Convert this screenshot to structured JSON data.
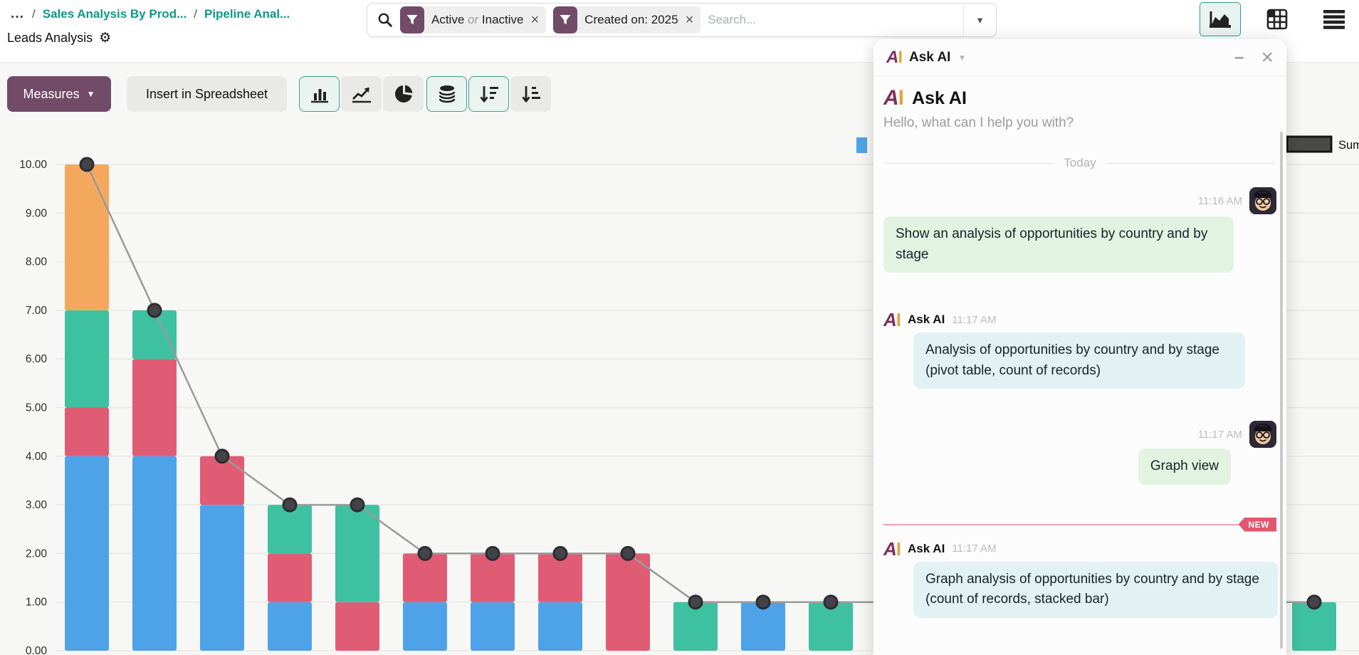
{
  "breadcrumb": {
    "menu_glyph": "…",
    "links": [
      "Sales Analysis By Prod...",
      "Pipeline Anal..."
    ],
    "separator": "/",
    "title": "Leads Analysis",
    "gear_glyph": "⚙"
  },
  "search": {
    "filters": [
      {
        "parts": [
          "Active",
          "or",
          "Inactive"
        ]
      },
      {
        "parts": [
          "Created on: 2025"
        ]
      }
    ],
    "placeholder": "Search..."
  },
  "toolbar": {
    "measures_label": "Measures",
    "insert_label": "Insert in Spreadsheet"
  },
  "chart_data": {
    "type": "bar",
    "subtype": "stacked-bars-with-sum-line",
    "title": "",
    "xlabel": "",
    "ylabel": "",
    "ylim": [
      0,
      10
    ],
    "grid": true,
    "y_ticks": [
      "10.00",
      "9.00",
      "8.00",
      "7.00",
      "6.00",
      "5.00",
      "4.00",
      "3.00",
      "2.00",
      "1.00",
      "0.00"
    ],
    "palette": {
      "blue": "#4ea3e8",
      "red": "#e05c75",
      "teal": "#3ec1a0",
      "orange": "#f4a85e",
      "sum_line": "#9a9a9a",
      "sum_dot": "#43434a"
    },
    "bars": [
      {
        "stack": [
          [
            "blue",
            4
          ],
          [
            "red",
            1
          ],
          [
            "teal",
            2
          ],
          [
            "orange",
            3
          ]
        ],
        "total": 10
      },
      {
        "stack": [
          [
            "blue",
            4
          ],
          [
            "red",
            2
          ],
          [
            "teal",
            1
          ]
        ],
        "total": 7
      },
      {
        "stack": [
          [
            "blue",
            3
          ],
          [
            "red",
            1
          ]
        ],
        "total": 4
      },
      {
        "stack": [
          [
            "blue",
            1
          ],
          [
            "red",
            1
          ],
          [
            "teal",
            1
          ]
        ],
        "total": 3
      },
      {
        "stack": [
          [
            "red",
            1
          ],
          [
            "teal",
            2
          ]
        ],
        "total": 3
      },
      {
        "stack": [
          [
            "blue",
            1
          ],
          [
            "red",
            1
          ]
        ],
        "total": 2
      },
      {
        "stack": [
          [
            "blue",
            1
          ],
          [
            "red",
            1
          ]
        ],
        "total": 2
      },
      {
        "stack": [
          [
            "blue",
            1
          ],
          [
            "red",
            1
          ]
        ],
        "total": 2
      },
      {
        "stack": [
          [
            "red",
            2
          ]
        ],
        "total": 2
      },
      {
        "stack": [
          [
            "teal",
            1
          ]
        ],
        "total": 1
      },
      {
        "stack": [
          [
            "blue",
            1
          ]
        ],
        "total": 1
      },
      {
        "stack": [
          [
            "teal",
            1
          ]
        ],
        "total": 1
      }
    ],
    "partial_right_bar": {
      "stack": [
        [
          "teal",
          1
        ]
      ],
      "total": 1
    },
    "sum_line_values": [
      10,
      7,
      4,
      3,
      3,
      2,
      2,
      2,
      2,
      1,
      1,
      1
    ],
    "partial_right_sum": 1,
    "legend": {
      "sum_label": "Sum",
      "partial_chip_color": "#4ea3e8",
      "legend_position": "top-right"
    }
  },
  "chat": {
    "header": {
      "title": "Ask AI",
      "minimize_glyph": "–",
      "close_glyph": "×"
    },
    "greeting": {
      "title": "Ask AI",
      "subtitle": "Hello, what can I help you with?"
    },
    "date_divider": "Today",
    "new_divider": "NEW",
    "messages": [
      {
        "role": "user",
        "time": "11:16 AM",
        "text": "Show an analysis of opportunities by country and by stage"
      },
      {
        "role": "ai",
        "sender": "Ask AI",
        "time": "11:17 AM",
        "text": "Analysis of opportunities by country and by stage (pivot table, count of records)"
      },
      {
        "role": "user",
        "time": "11:17 AM",
        "text": "Graph view"
      },
      {
        "role": "ai",
        "sender": "Ask AI",
        "time": "11:17 AM",
        "text": "Graph analysis of opportunities by country and by stage (count of records, stacked bar)"
      }
    ]
  }
}
